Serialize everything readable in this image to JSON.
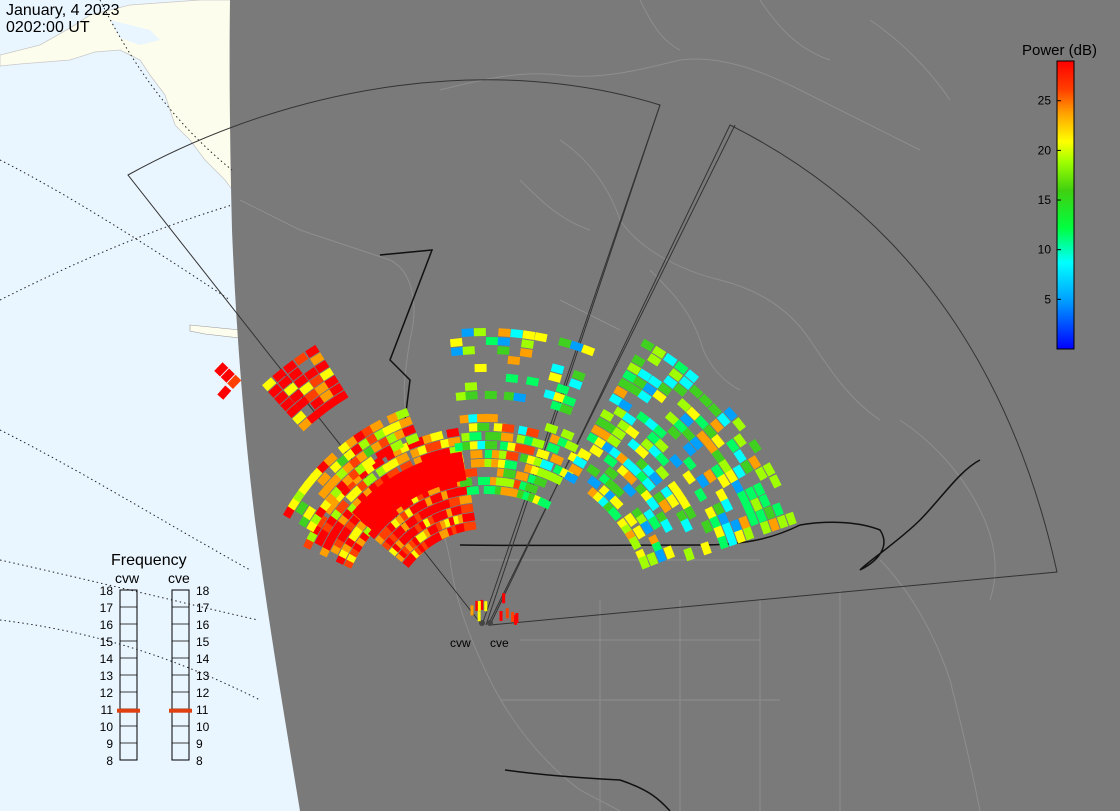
{
  "header": {
    "date": "January, 4 2023",
    "time": "0202:00 UT"
  },
  "colorbar": {
    "title": "Power (dB)",
    "ticks": [
      25,
      20,
      15,
      10,
      5
    ],
    "range": [
      0,
      29
    ],
    "colors": [
      "#0000ff",
      "#00a0ff",
      "#00ffff",
      "#00ff60",
      "#40d020",
      "#a0ff00",
      "#ffff00",
      "#ffa000",
      "#ff4000",
      "#ff0000"
    ]
  },
  "frequency_panel": {
    "title": "Frequency",
    "radars": [
      {
        "name": "cvw",
        "value": 10.9
      },
      {
        "name": "cve",
        "value": 10.9
      }
    ],
    "scale": [
      18,
      17,
      16,
      15,
      14,
      13,
      12,
      11,
      10,
      9,
      8
    ],
    "marker_color": "#e04010"
  },
  "radars": [
    {
      "name": "cvw"
    },
    {
      "name": "cve"
    }
  ],
  "colors": {
    "night": "#7a7a7a",
    "land_day": "#fdfdee",
    "ocean_day": "#eaf6ff"
  }
}
